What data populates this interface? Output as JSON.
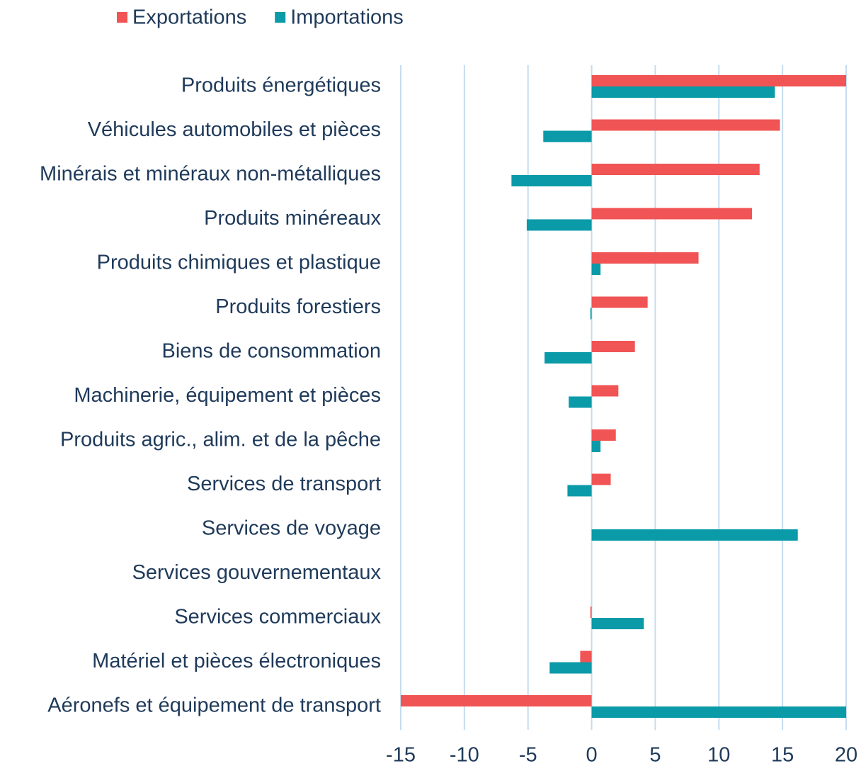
{
  "chart_data": {
    "type": "bar",
    "orientation": "horizontal",
    "categories": [
      "Produits énergétiques",
      "Véhicules automobiles et pièces",
      "Minérais et minéraux non-métalliques",
      "Produits minéreaux",
      "Produits chimiques et plastique",
      "Produits forestiers",
      "Biens de consommation",
      "Machinerie, équipement et pièces",
      "Produits agric., alim. et de la pêche",
      "Services de transport",
      "Services de voyage",
      "Services gouvernementaux",
      "Services commerciaux",
      "Matériel et pièces électroniques",
      "Aéronefs et équipement de transport"
    ],
    "series": [
      {
        "name": "Exportations",
        "color": "#f05454",
        "values": [
          20,
          14.8,
          13.2,
          12.6,
          8.4,
          4.4,
          3.4,
          2.1,
          1.9,
          1.5,
          0,
          0,
          -0.1,
          -0.9,
          -15
        ]
      },
      {
        "name": "Importations",
        "color": "#0a9aa8",
        "values": [
          14.4,
          -3.8,
          -6.3,
          -5.1,
          0.7,
          -0.1,
          -3.7,
          -1.8,
          0.7,
          -1.9,
          16.2,
          0,
          4.1,
          -3.3,
          20
        ]
      }
    ],
    "xlim": [
      -15,
      20
    ],
    "xticks": [
      -15,
      -10,
      -5,
      0,
      5,
      10,
      15,
      20
    ],
    "grid": true,
    "legend": "top"
  }
}
